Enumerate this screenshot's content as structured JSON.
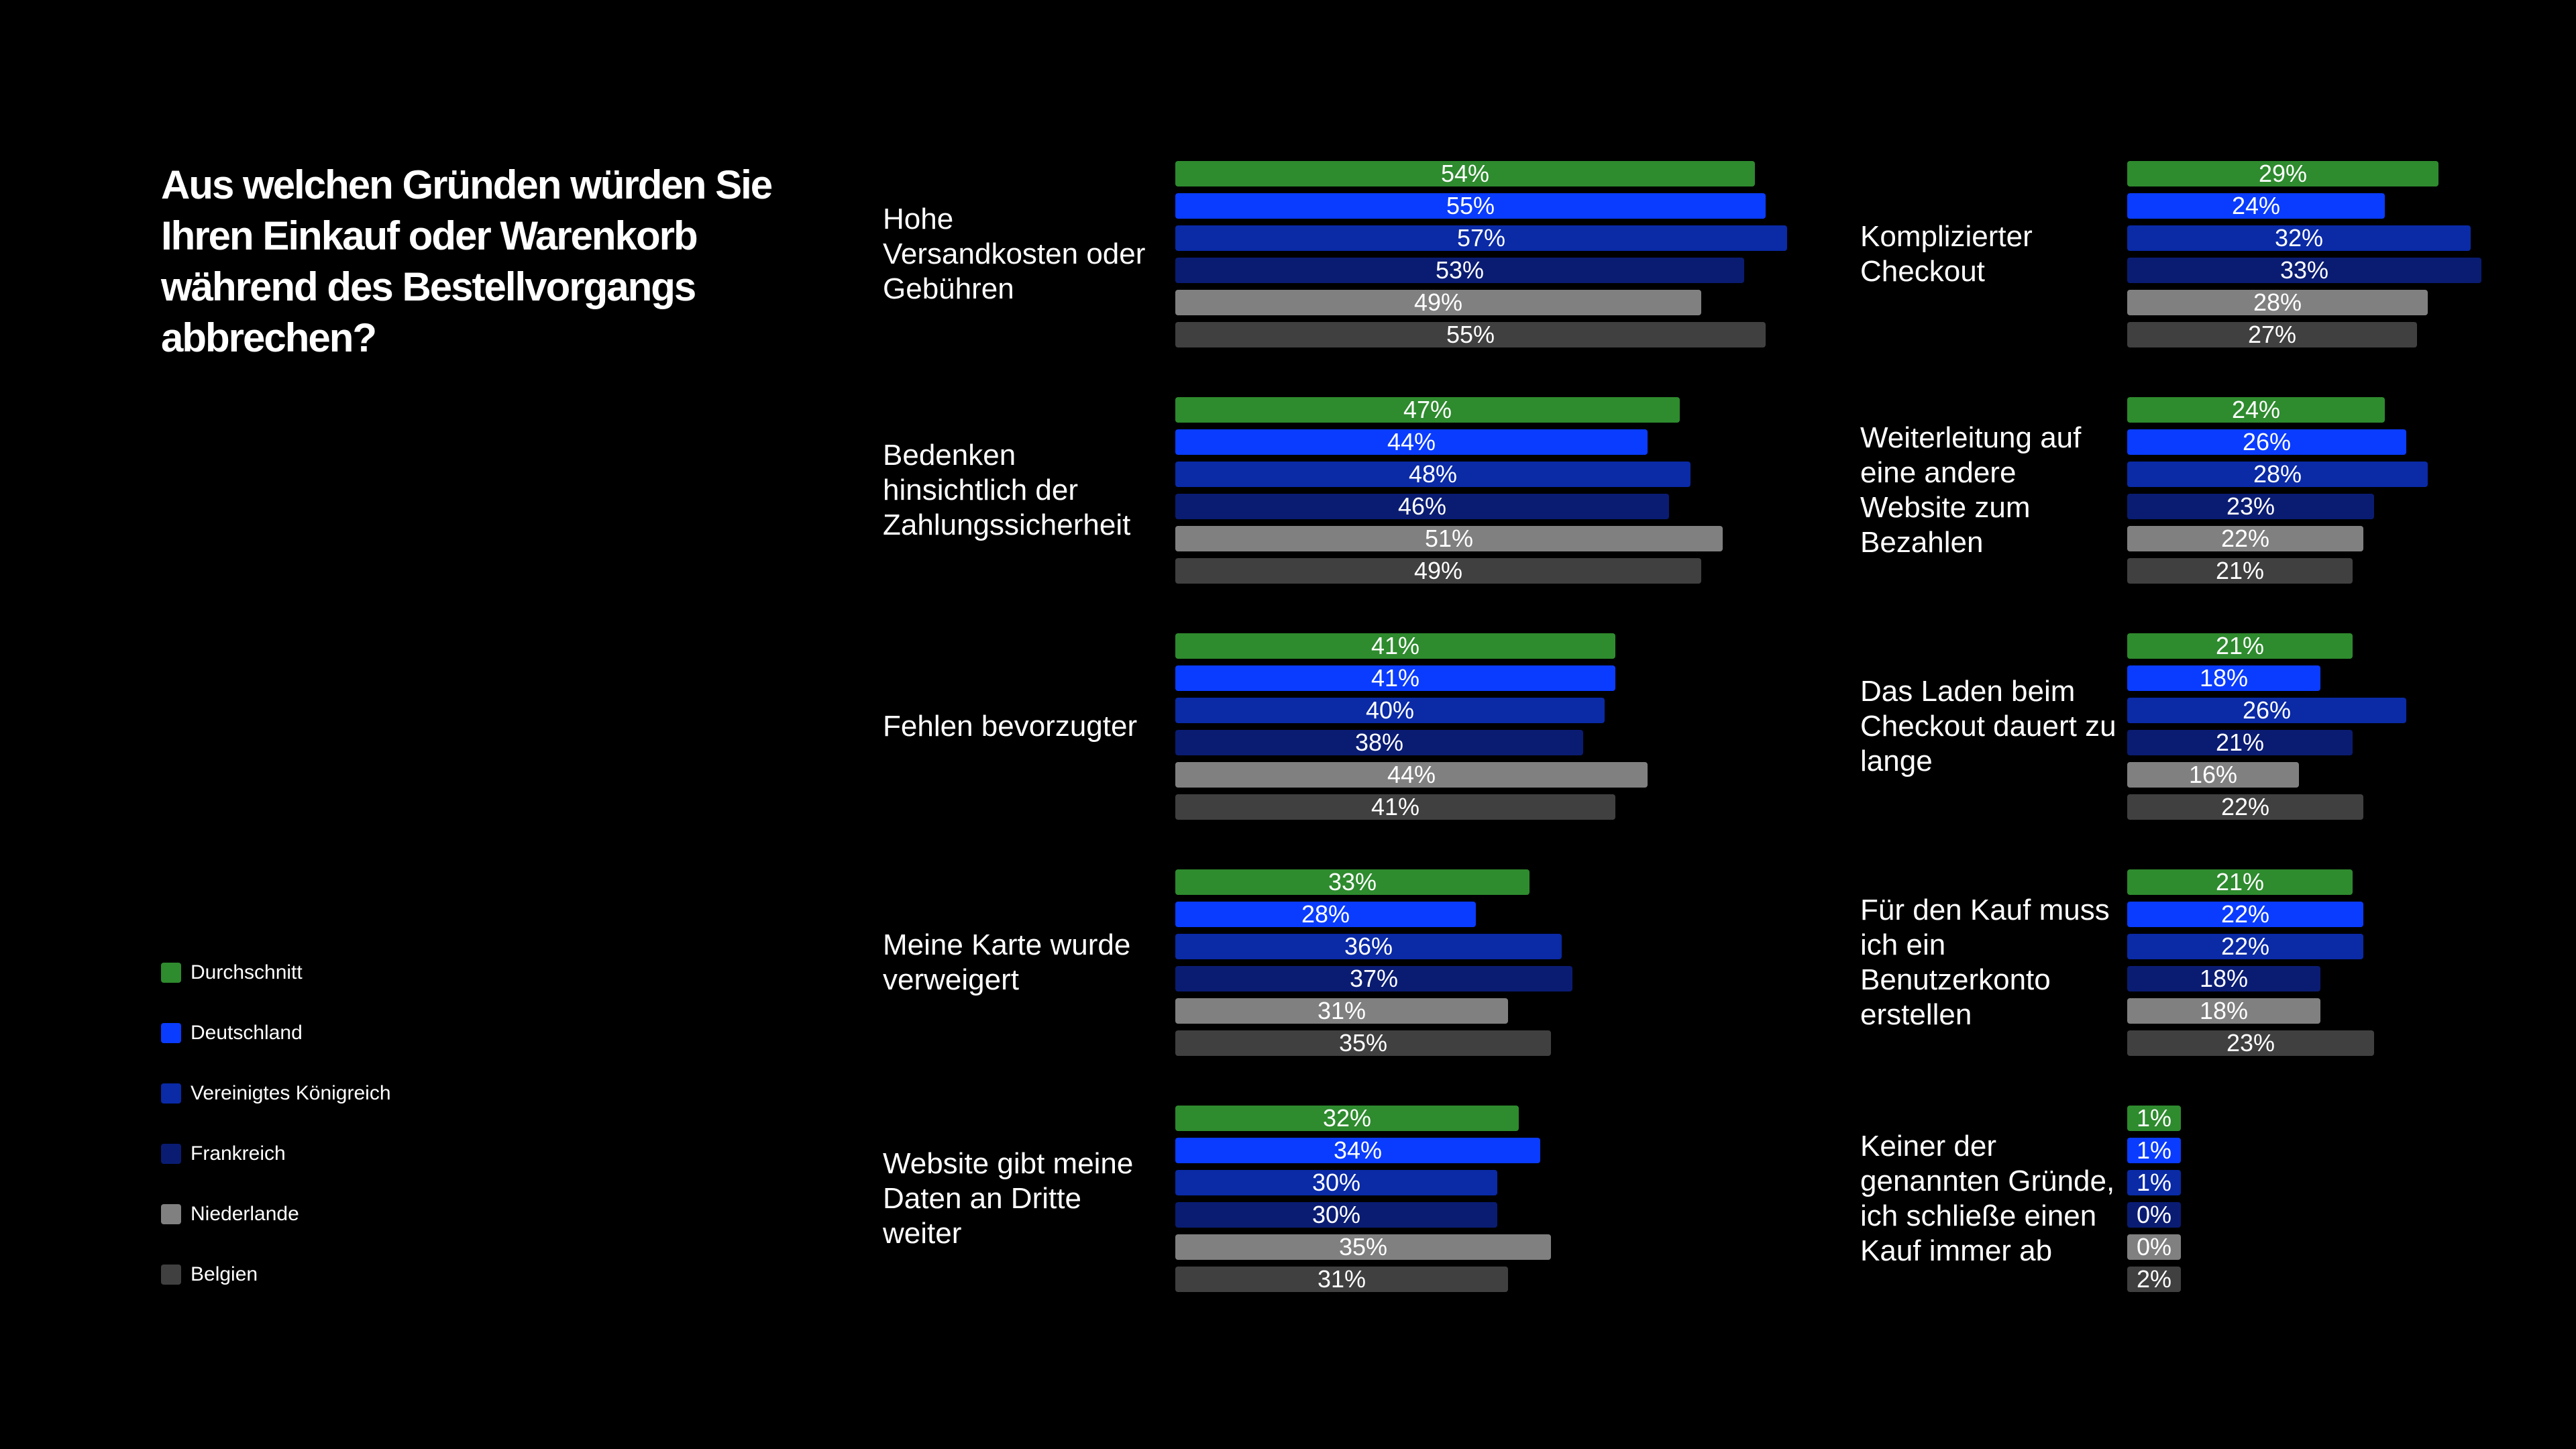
{
  "title": "Aus welchen Gründen würden Sie Ihren Einkauf oder Warenkorb während des Bestellvorgangs abbrechen?",
  "chart_data": {
    "type": "bar",
    "orientation": "horizontal",
    "title": "Aus welchen Gründen würden Sie Ihren Einkauf oder Warenkorb während des Bestellvorgangs abbrechen?",
    "value_unit": "%",
    "legend_position": "bottom-left",
    "grid": false,
    "categories": [
      "Hohe Versandkosten oder Gebühren",
      "Bedenken hinsichtlich der Zahlungssicherheit",
      "Fehlen bevorzugter",
      "Meine Karte wurde verweigert",
      "Website gibt meine Daten an Dritte weiter",
      "Komplizierter Checkout",
      "Weiterleitung auf eine andere Website zum Bezahlen",
      "Das Laden beim Checkout dauert zu lange",
      "Für den Kauf muss ich ein Benutzerkonto erstellen",
      "Keiner der genannten Gründe, ich schließe einen Kauf immer ab"
    ],
    "series": [
      {
        "name": "Durchschnitt",
        "color": "#2E8B2E",
        "values": [
          54,
          47,
          41,
          33,
          32,
          29,
          24,
          21,
          21,
          1
        ]
      },
      {
        "name": "Deutschland",
        "color": "#0A3CFF",
        "values": [
          55,
          44,
          41,
          28,
          34,
          24,
          26,
          18,
          22,
          1
        ]
      },
      {
        "name": "Vereinigtes Königreich",
        "color": "#0A2AA6",
        "values": [
          57,
          48,
          40,
          36,
          30,
          32,
          28,
          26,
          22,
          1
        ]
      },
      {
        "name": "Frankreich",
        "color": "#0A1C72",
        "values": [
          53,
          46,
          38,
          37,
          30,
          33,
          23,
          21,
          18,
          0
        ]
      },
      {
        "name": "Niederlande",
        "color": "#808080",
        "values": [
          49,
          51,
          44,
          31,
          35,
          28,
          22,
          16,
          18,
          0
        ]
      },
      {
        "name": "Belgien",
        "color": "#404040",
        "values": [
          55,
          49,
          41,
          35,
          31,
          27,
          21,
          22,
          23,
          2
        ]
      }
    ]
  }
}
